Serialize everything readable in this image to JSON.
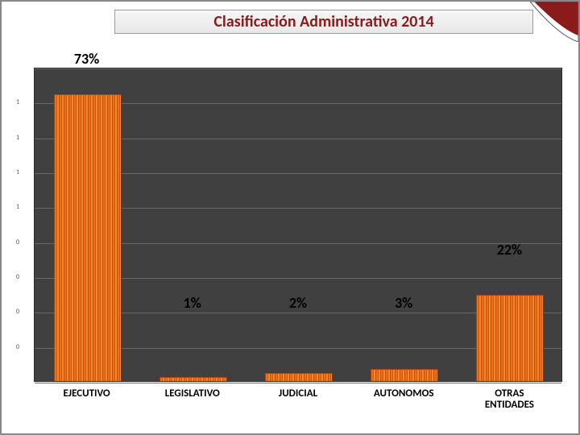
{
  "title": "Clasificación Administrativa 2014",
  "chart": {
    "type": "bar",
    "background_color": "#404040",
    "grid_color": "#6a6a6a",
    "bar_primary_color": "#e8701a",
    "bar_stripe_colors": [
      "#e8701a",
      "#d3570c",
      "#f08830",
      "#c94f00"
    ],
    "ylim": [
      0,
      80
    ],
    "gridlines": 9,
    "ytick_labels": [
      "1",
      "1",
      "1",
      "1",
      "0",
      "0",
      "0",
      "0"
    ],
    "value_label_fontsize": 18,
    "value_label_color": "#000000",
    "title_color": "#8b1a1a",
    "title_fontsize": 20,
    "xlabel_fontsize": 13,
    "bars": [
      {
        "category": "EJECUTIVO",
        "value": 73,
        "label": "73%"
      },
      {
        "category": "LEGISLATIVO",
        "value": 1,
        "label": "1%"
      },
      {
        "category": "JUDICIAL",
        "value": 2,
        "label": "2%"
      },
      {
        "category": "AUTONOMOS",
        "value": 3,
        "label": "3%"
      },
      {
        "category": "OTRAS ENTIDADES",
        "value": 22,
        "label": "22%"
      }
    ]
  },
  "corner_accent_color": "#8b1a1a"
}
